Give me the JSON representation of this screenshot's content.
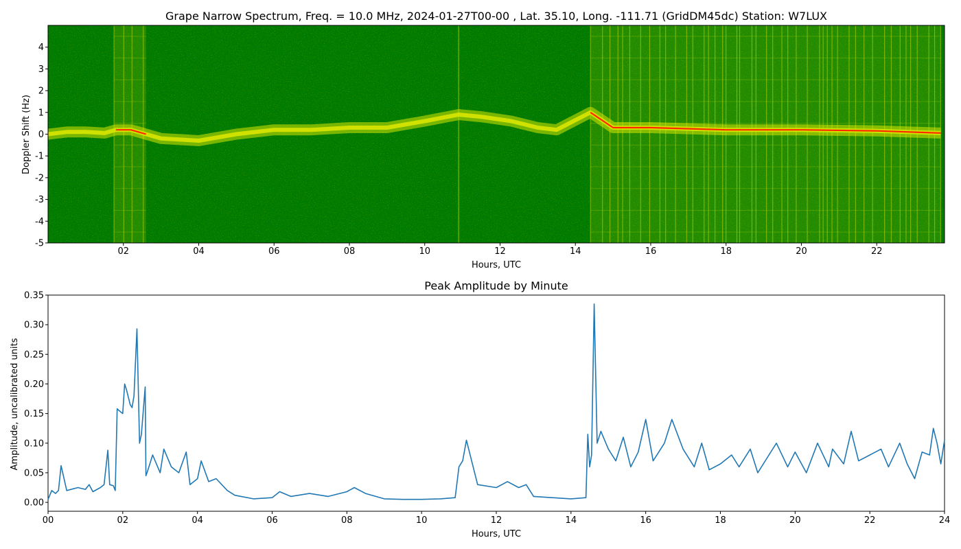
{
  "chart_data": [
    {
      "type": "heatmap",
      "title": "Grape Narrow Spectrum, Freq. = 10.0 MHz, 2024-01-27T00-00 , Lat.  35.10, Long. -111.71 (GridDM45dc) Station: W7LUX",
      "xlabel": "Hours, UTC",
      "ylabel": "Doppler Shift (Hz)",
      "xlim": [
        0,
        23.8
      ],
      "ylim": [
        -5,
        5
      ],
      "x_ticks": [
        "02",
        "04",
        "06",
        "08",
        "10",
        "12",
        "14",
        "16",
        "18",
        "20",
        "22"
      ],
      "y_ticks": [
        "-5",
        "-4",
        "-3",
        "-2",
        "-1",
        "0",
        "1",
        "2",
        "3",
        "4"
      ],
      "colors": [
        "#007a00",
        "#d9e600",
        "#ff2a00"
      ],
      "dense_bands_hours": [
        [
          1.75,
          2.6
        ],
        [
          14.4,
          23.7
        ]
      ],
      "peak_doppler_trace": {
        "x": [
          0,
          0.5,
          1,
          1.5,
          1.8,
          2.2,
          2.6,
          3,
          4,
          5,
          6,
          7,
          8,
          9,
          10,
          10.9,
          11.5,
          12.3,
          13,
          13.5,
          14.4,
          15,
          16,
          18,
          20,
          22,
          23.7
        ],
        "y": [
          0,
          0.1,
          0.1,
          0.05,
          0.2,
          0.2,
          0.0,
          -0.2,
          -0.3,
          0.0,
          0.2,
          0.2,
          0.3,
          0.3,
          0.6,
          0.9,
          0.8,
          0.6,
          0.3,
          0.2,
          1.0,
          0.3,
          0.3,
          0.2,
          0.2,
          0.15,
          0.05
        ]
      }
    },
    {
      "type": "line",
      "title": "Peak Amplitude by Minute",
      "xlabel": "Hours, UTC",
      "ylabel": "Amplitude, uncalibrated units",
      "xlim": [
        0,
        24
      ],
      "ylim": [
        -0.015,
        0.35
      ],
      "x_ticks": [
        "00",
        "02",
        "04",
        "06",
        "08",
        "10",
        "12",
        "14",
        "16",
        "18",
        "20",
        "22",
        "24"
      ],
      "y_ticks": [
        "0.00",
        "0.05",
        "0.10",
        "0.15",
        "0.20",
        "0.25",
        "0.30",
        "0.35"
      ],
      "line_color": "#1f77b4",
      "x": [
        0,
        0.1,
        0.2,
        0.28,
        0.35,
        0.5,
        0.8,
        1.0,
        1.1,
        1.2,
        1.4,
        1.5,
        1.6,
        1.65,
        1.75,
        1.8,
        1.85,
        1.9,
        2.0,
        2.05,
        2.1,
        2.2,
        2.25,
        2.3,
        2.38,
        2.45,
        2.5,
        2.6,
        2.62,
        2.65,
        2.8,
        3.0,
        3.1,
        3.3,
        3.5,
        3.7,
        3.8,
        4.0,
        4.1,
        4.3,
        4.5,
        4.8,
        5.0,
        5.5,
        6.0,
        6.2,
        6.5,
        7.0,
        7.5,
        8.0,
        8.2,
        8.5,
        9.0,
        9.5,
        10.0,
        10.5,
        10.9,
        11.0,
        11.1,
        11.2,
        11.5,
        12.0,
        12.3,
        12.6,
        12.8,
        13.0,
        13.5,
        14.0,
        14.4,
        14.45,
        14.5,
        14.55,
        14.62,
        14.7,
        14.8,
        15.0,
        15.2,
        15.4,
        15.6,
        15.8,
        16.0,
        16.2,
        16.5,
        16.7,
        17.0,
        17.3,
        17.5,
        17.7,
        18.0,
        18.3,
        18.5,
        18.8,
        19.0,
        19.3,
        19.5,
        19.8,
        20.0,
        20.3,
        20.6,
        20.9,
        21.0,
        21.3,
        21.5,
        21.7,
        22.0,
        22.3,
        22.5,
        22.8,
        23.0,
        23.2,
        23.4,
        23.6,
        23.7,
        23.8,
        23.9,
        24.0
      ],
      "y": [
        0.005,
        0.02,
        0.015,
        0.02,
        0.062,
        0.02,
        0.025,
        0.022,
        0.03,
        0.018,
        0.025,
        0.03,
        0.088,
        0.03,
        0.028,
        0.02,
        0.158,
        0.155,
        0.15,
        0.2,
        0.19,
        0.165,
        0.16,
        0.18,
        0.293,
        0.1,
        0.115,
        0.195,
        0.045,
        0.05,
        0.08,
        0.05,
        0.09,
        0.06,
        0.05,
        0.085,
        0.03,
        0.04,
        0.07,
        0.035,
        0.04,
        0.02,
        0.012,
        0.006,
        0.008,
        0.018,
        0.01,
        0.015,
        0.01,
        0.018,
        0.025,
        0.015,
        0.006,
        0.005,
        0.005,
        0.006,
        0.008,
        0.06,
        0.07,
        0.105,
        0.03,
        0.025,
        0.035,
        0.025,
        0.03,
        0.01,
        0.008,
        0.006,
        0.008,
        0.115,
        0.06,
        0.08,
        0.335,
        0.1,
        0.12,
        0.09,
        0.07,
        0.11,
        0.06,
        0.085,
        0.14,
        0.07,
        0.1,
        0.14,
        0.09,
        0.06,
        0.1,
        0.055,
        0.065,
        0.08,
        0.06,
        0.09,
        0.05,
        0.08,
        0.1,
        0.06,
        0.085,
        0.05,
        0.1,
        0.06,
        0.09,
        0.065,
        0.12,
        0.07,
        0.08,
        0.09,
        0.06,
        0.1,
        0.065,
        0.04,
        0.085,
        0.08,
        0.125,
        0.1,
        0.065,
        0.105
      ]
    }
  ]
}
